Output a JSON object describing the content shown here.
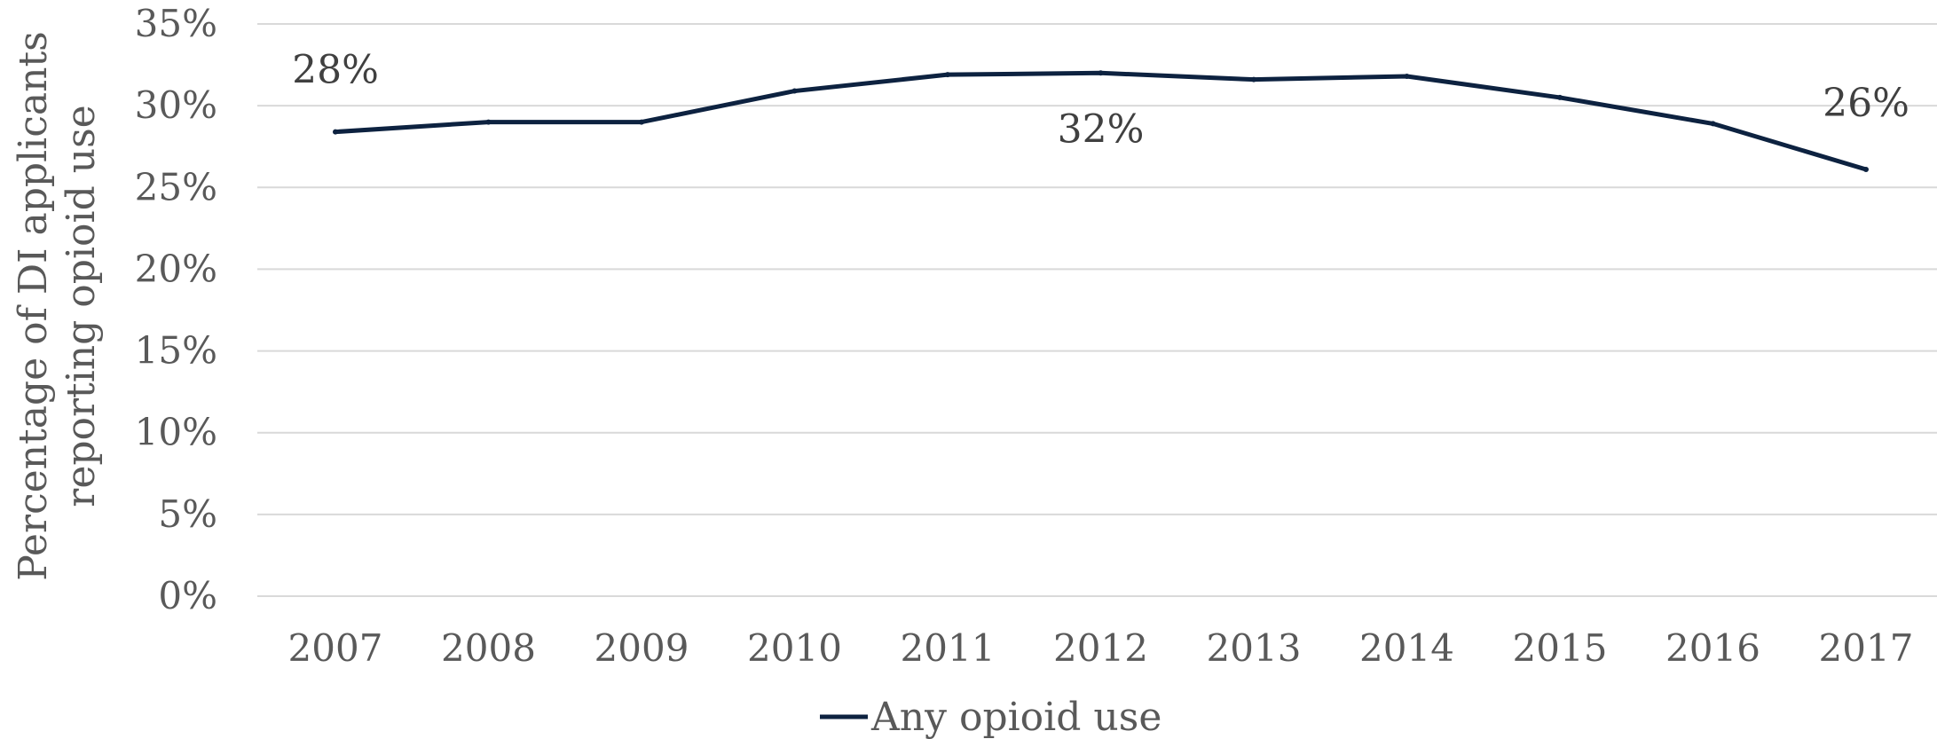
{
  "chart_data": {
    "type": "line",
    "title": "",
    "ylabel_lines": [
      "Percentage of DI applicants",
      "reporting opioid use"
    ],
    "xlabel": "",
    "categories": [
      "2007",
      "2008",
      "2009",
      "2010",
      "2011",
      "2012",
      "2013",
      "2014",
      "2015",
      "2016",
      "2017"
    ],
    "ylim": [
      0,
      35
    ],
    "yticks": [
      0,
      5,
      10,
      15,
      20,
      25,
      30,
      35
    ],
    "ytick_labels": [
      "0%",
      "5%",
      "10%",
      "15%",
      "20%",
      "25%",
      "30%",
      "35%"
    ],
    "grid": true,
    "legend_position": "bottom",
    "series": [
      {
        "name": "Any opioid use",
        "color": "#0d2240",
        "values": [
          28.4,
          29.0,
          29.0,
          30.9,
          31.9,
          32.0,
          31.6,
          31.8,
          30.5,
          28.9,
          26.1
        ]
      }
    ],
    "annotations": [
      {
        "category": "2007",
        "text": "28%"
      },
      {
        "category": "2012",
        "text": "32%"
      },
      {
        "category": "2017",
        "text": "26%"
      }
    ]
  }
}
